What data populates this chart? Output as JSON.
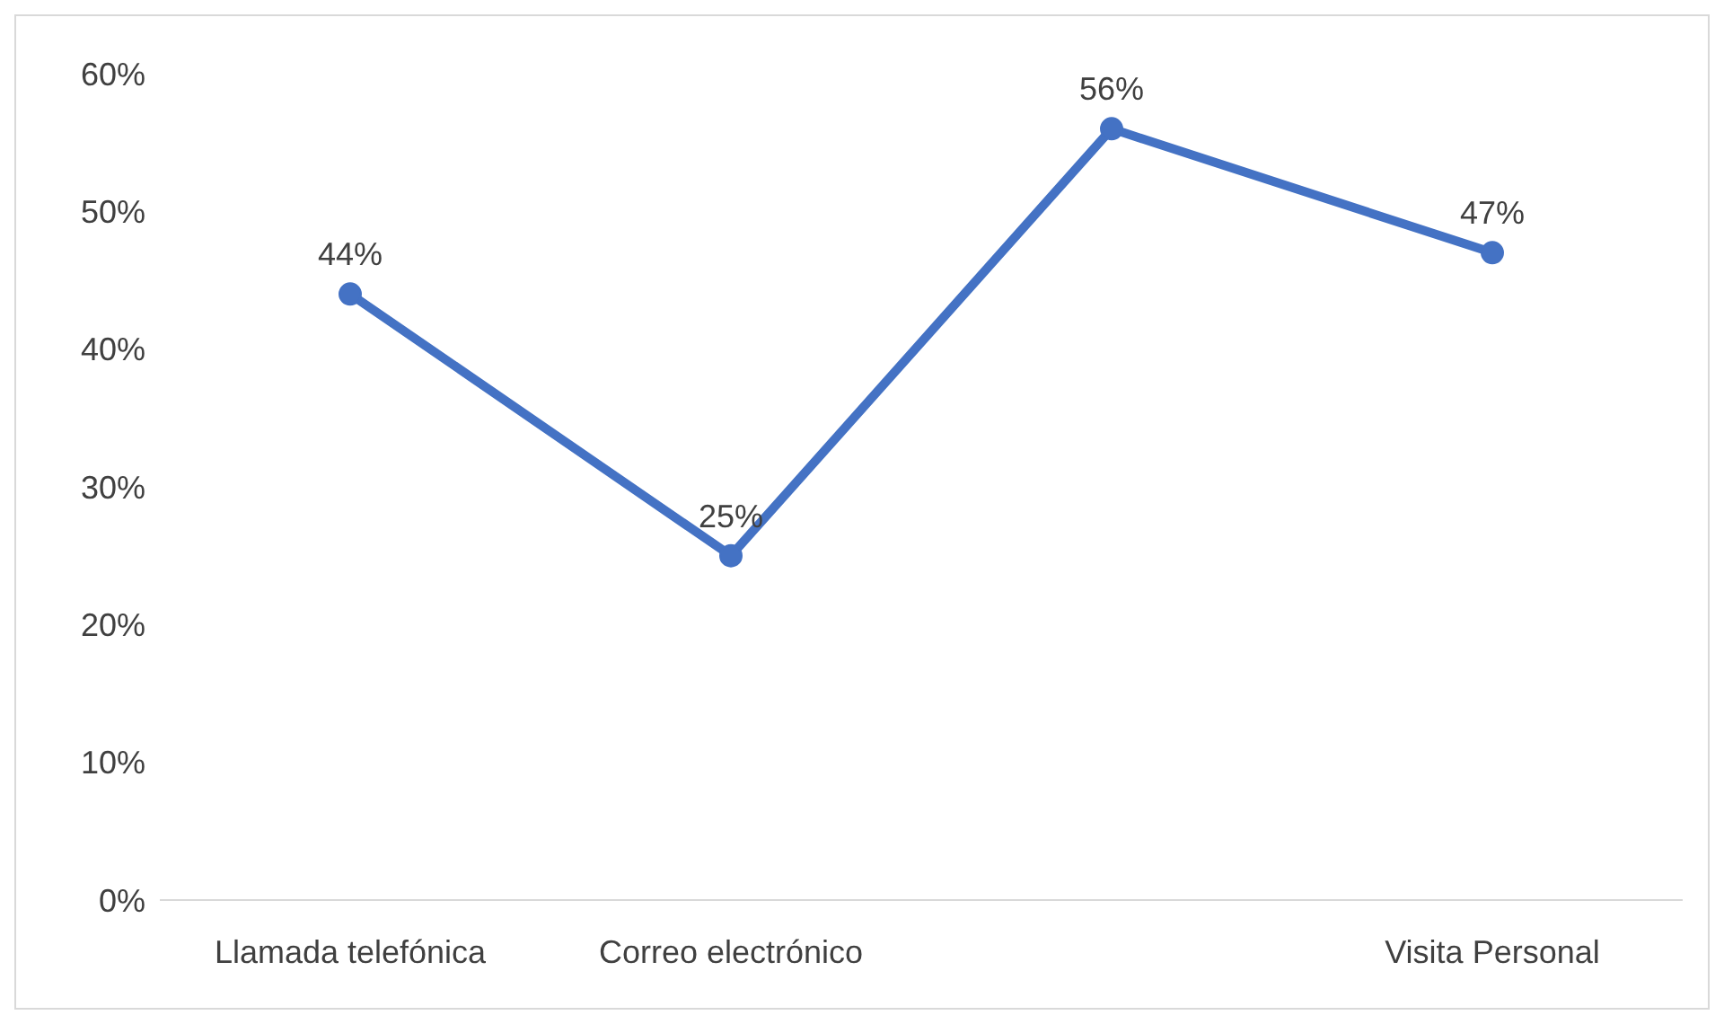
{
  "chart_data": {
    "type": "line",
    "categories": [
      "Llamada telefónica",
      "Correo electrónico",
      null,
      "Visita Personal"
    ],
    "series": [
      {
        "color": "#4472c4",
        "values": [
          44,
          25,
          56,
          47
        ]
      }
    ],
    "value_labels": [
      "44%",
      "25%",
      "56%",
      "47%"
    ],
    "ylim": [
      0,
      60
    ],
    "yticks": [
      {
        "value": 0,
        "label": "0%"
      },
      {
        "value": 10,
        "label": "10%"
      },
      {
        "value": 20,
        "label": "20%"
      },
      {
        "value": 30,
        "label": "30%"
      },
      {
        "value": 40,
        "label": "40%"
      },
      {
        "value": 50,
        "label": "50%"
      },
      {
        "value": 60,
        "label": "60%"
      }
    ],
    "marker": "circle",
    "line_style": "solid"
  }
}
